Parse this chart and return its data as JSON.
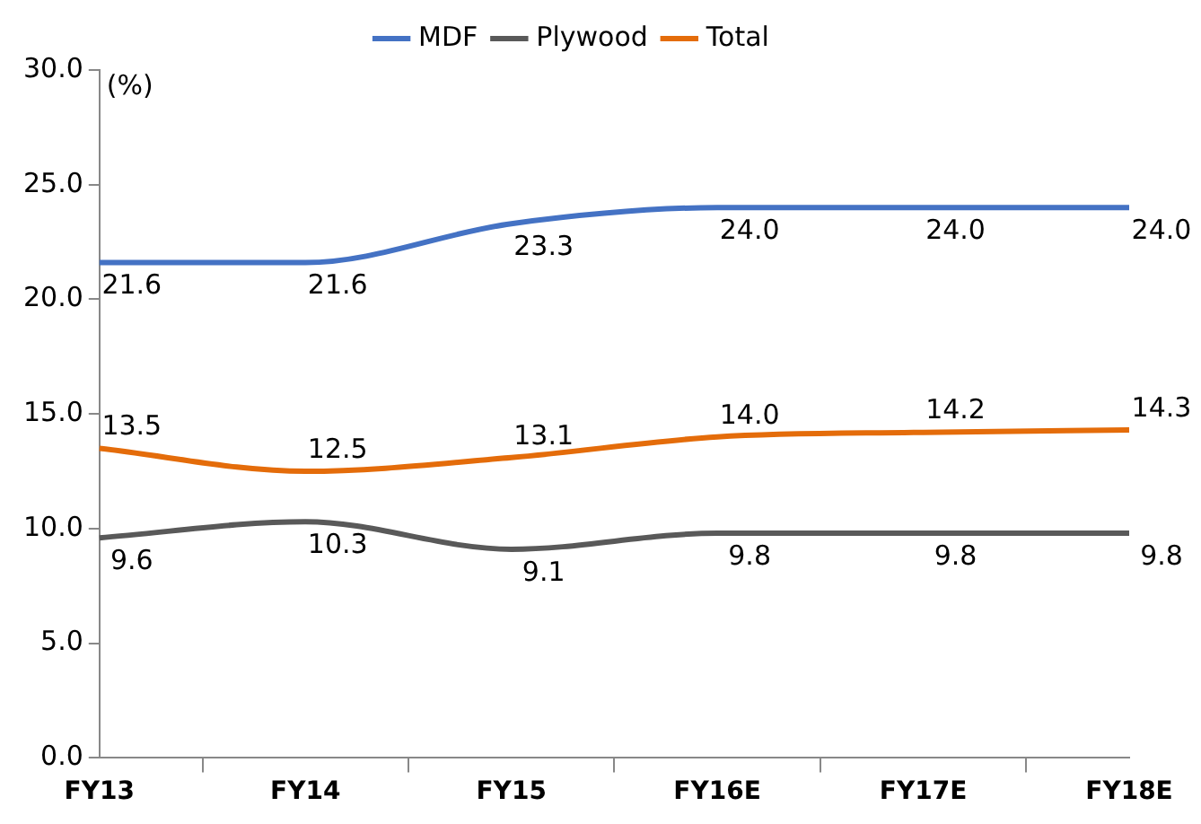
{
  "chart_data": {
    "type": "line",
    "ylabel": "(%)",
    "categories": [
      "FY13",
      "FY14",
      "FY15",
      "FY16E",
      "FY17E",
      "FY18E"
    ],
    "series": [
      {
        "name": "MDF",
        "color": "#4472c4",
        "values": [
          21.6,
          21.6,
          23.3,
          24.0,
          24.0,
          24.0
        ],
        "value_labels": [
          "21.6",
          "21.6",
          "23.3",
          "24.0",
          "24.0",
          "24.0"
        ]
      },
      {
        "name": "Plywood",
        "color": "#595959",
        "values": [
          9.6,
          10.3,
          9.1,
          9.8,
          9.8,
          9.8
        ],
        "value_labels": [
          "9.6",
          "10.3",
          "9.1",
          "9.8",
          "9.8",
          "9.8"
        ]
      },
      {
        "name": "Total",
        "color": "#e46c0a",
        "values": [
          13.5,
          12.5,
          13.1,
          14.0,
          14.2,
          14.3
        ],
        "value_labels": [
          "13.5",
          "12.5",
          "13.1",
          "14.0",
          "14.2",
          "14.3"
        ]
      }
    ],
    "ylim": [
      0,
      30
    ],
    "yticks": [
      {
        "value": 0,
        "label": "0.0"
      },
      {
        "value": 5,
        "label": "5.0"
      },
      {
        "value": 10,
        "label": "10.0"
      },
      {
        "value": 15,
        "label": "15.0"
      },
      {
        "value": 20,
        "label": "20.0"
      },
      {
        "value": 25,
        "label": "25.0"
      },
      {
        "value": 30,
        "label": "30.0"
      }
    ],
    "grid": false,
    "legend": "top",
    "marker": "none",
    "line_style": "solid"
  }
}
